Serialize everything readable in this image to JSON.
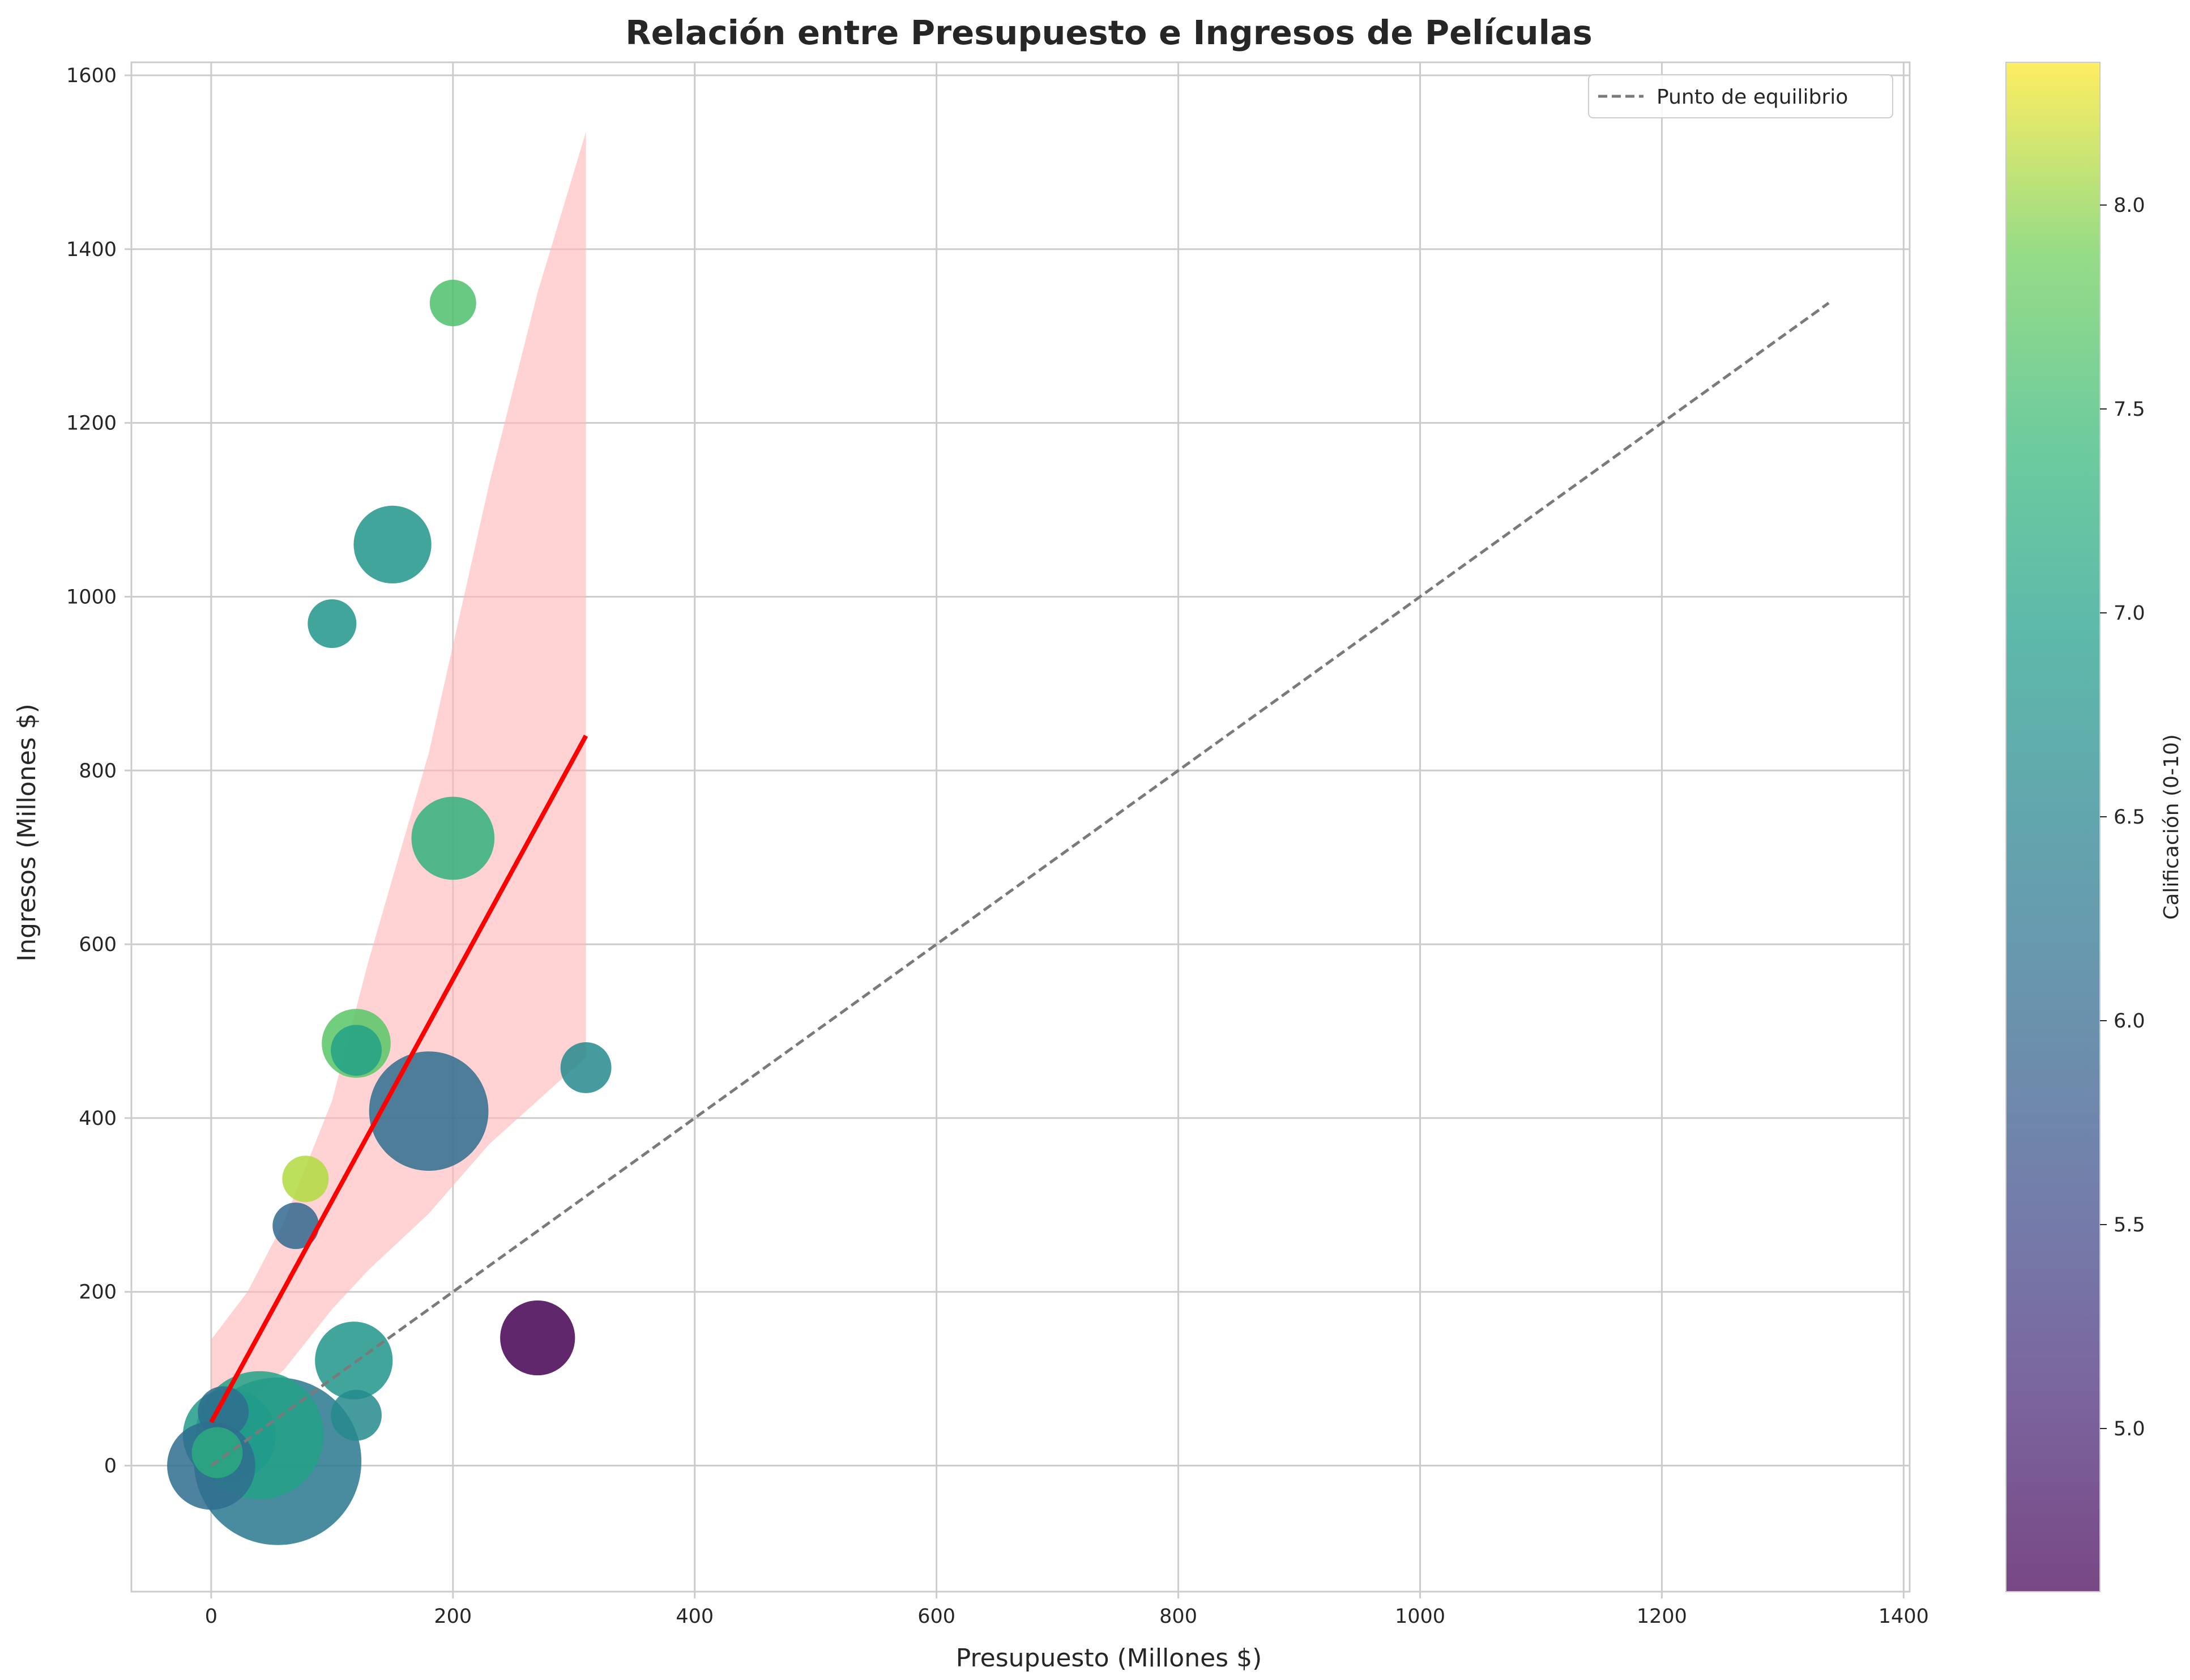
{
  "chart_data": {
    "type": "scatter",
    "title": "Relación entre Presupuesto e Ingresos de Películas",
    "xlabel": "Presupuesto (Millones $)",
    "ylabel": "Ingresos (Millones $)",
    "xlim": [
      -66,
      1405
    ],
    "ylim": [
      -145,
      1615
    ],
    "x_ticks": [
      0,
      200,
      400,
      600,
      800,
      1000,
      1200,
      1400
    ],
    "y_ticks": [
      0,
      200,
      400,
      600,
      800,
      1000,
      1200,
      1400,
      1600
    ],
    "grid": true,
    "legend": {
      "position": "top-right",
      "entries": [
        "Punto de equilibrio"
      ]
    },
    "colorbar": {
      "label": "Calificación (0-10)",
      "range": [
        4.6,
        8.35
      ],
      "ticks": [
        "5.0",
        "5.5",
        "6.0",
        "6.5",
        "7.0",
        "7.5",
        "8.0"
      ],
      "colormap": "viridis"
    },
    "points": [
      {
        "budget": 200,
        "revenue": 1338,
        "rating": 7.6,
        "size": 0.5
      },
      {
        "budget": 150,
        "revenue": 1060,
        "rating": 6.8,
        "size": 1.4
      },
      {
        "budget": 100,
        "revenue": 969,
        "rating": 6.8,
        "size": 0.55
      },
      {
        "budget": 200,
        "revenue": 722,
        "rating": 7.3,
        "size": 1.6
      },
      {
        "budget": 120,
        "revenue": 486,
        "rating": 7.7,
        "size": 1.1
      },
      {
        "budget": 120,
        "revenue": 478,
        "rating": 7.0,
        "size": 0.6
      },
      {
        "budget": 310,
        "revenue": 458,
        "rating": 6.6,
        "size": 0.6
      },
      {
        "budget": 180,
        "revenue": 408,
        "rating": 6.1,
        "size": 3.3
      },
      {
        "budget": 78,
        "revenue": 330,
        "rating": 8.1,
        "size": 0.5
      },
      {
        "budget": 70,
        "revenue": 276,
        "rating": 6.0,
        "size": 0.5
      },
      {
        "budget": 270,
        "revenue": 147,
        "rating": 4.6,
        "size": 1.3
      },
      {
        "budget": 118,
        "revenue": 121,
        "rating": 6.8,
        "size": 1.4
      },
      {
        "budget": 120,
        "revenue": 58,
        "rating": 6.6,
        "size": 0.6
      },
      {
        "budget": 10,
        "revenue": 62,
        "rating": 6.1,
        "size": 0.6
      },
      {
        "budget": 40,
        "revenue": 35,
        "rating": 7.0,
        "size": 3.8
      },
      {
        "budget": 55,
        "revenue": 5,
        "rating": 6.3,
        "size": 6.5
      },
      {
        "budget": 15,
        "revenue": 35,
        "rating": 6.9,
        "size": 2.0
      },
      {
        "budget": 5,
        "revenue": 15,
        "rating": 7.2,
        "size": 0.6
      },
      {
        "budget": 0,
        "revenue": 0,
        "rating": 6.1,
        "size": 1.8
      }
    ],
    "regression": {
      "x": [
        0,
        310
      ],
      "y": [
        50,
        840
      ],
      "color": "#ff0000"
    },
    "confidence_band": {
      "x": [
        0,
        30,
        60,
        100,
        130,
        180,
        230,
        270,
        310
      ],
      "lower": [
        35,
        75,
        110,
        180,
        225,
        290,
        370,
        420,
        470
      ],
      "upper": [
        145,
        200,
        280,
        420,
        580,
        820,
        1130,
        1350,
        1535
      ]
    },
    "breakeven_line": {
      "name": "Punto de equilibrio",
      "x": [
        0,
        1338
      ],
      "y": [
        0,
        1338
      ]
    }
  },
  "colors": {
    "regression": "#ff0000",
    "band": "#ffb6b8",
    "breakeven": "#7a7a7a",
    "grid": "#cccccc"
  }
}
